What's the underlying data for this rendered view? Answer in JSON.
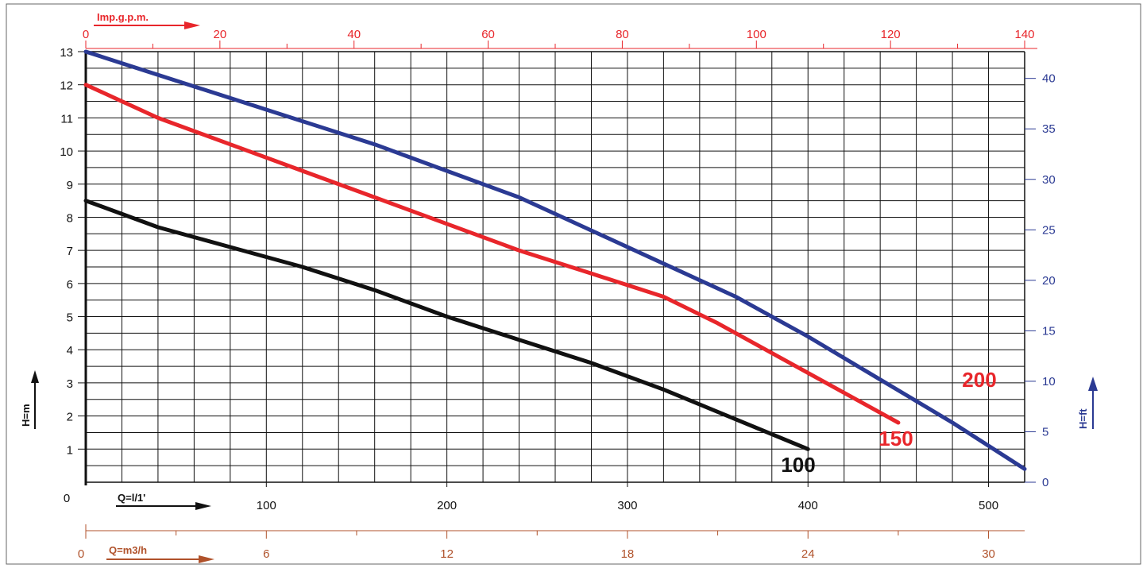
{
  "chart_data": {
    "type": "line",
    "title": "",
    "colors": {
      "left_axis": "#111111",
      "top_axis": "#e8262b",
      "right_axis": "#2b3a93",
      "bottom2_axis": "#b0522b",
      "grid": "#111111"
    },
    "axes": {
      "x_main": {
        "label": "Q=l/1'",
        "unit": "l/min",
        "range": [
          0,
          520
        ],
        "ticks": [
          0,
          100,
          200,
          300,
          400,
          500
        ]
      },
      "x_top": {
        "label": "Imp.g.p.m.",
        "range": [
          0,
          140
        ],
        "ticks": [
          0,
          20,
          40,
          60,
          80,
          100,
          120,
          140
        ]
      },
      "x_bottom2": {
        "label": "Q=m3/h",
        "range": [
          0,
          31.2
        ],
        "ticks": [
          0,
          6,
          12,
          18,
          24,
          30
        ]
      },
      "y_left": {
        "label": "H=m",
        "range": [
          0,
          13
        ],
        "ticks": [
          0,
          1,
          2,
          3,
          4,
          5,
          6,
          7,
          8,
          9,
          10,
          11,
          12,
          13
        ]
      },
      "y_right": {
        "label": "H=ft",
        "range": [
          0,
          42.65
        ],
        "ticks": [
          0,
          5,
          10,
          15,
          20,
          25,
          30,
          35,
          40
        ]
      }
    },
    "grid": true,
    "series": [
      {
        "name": "100",
        "color": "#111111",
        "x": [
          0,
          40,
          80,
          120,
          160,
          200,
          240,
          280,
          320,
          360,
          400
        ],
        "y": [
          8.5,
          7.7,
          7.1,
          6.5,
          5.8,
          5.0,
          4.3,
          3.6,
          2.8,
          1.9,
          1.0
        ]
      },
      {
        "name": "150",
        "color": "#e8262b",
        "x": [
          0,
          40,
          80,
          120,
          160,
          200,
          240,
          280,
          320,
          350,
          380,
          420,
          450
        ],
        "y": [
          12.0,
          11.0,
          10.2,
          9.4,
          8.6,
          7.8,
          7.0,
          6.3,
          5.6,
          4.8,
          3.9,
          2.7,
          1.8
        ]
      },
      {
        "name": "200",
        "color": "#2b3a93",
        "x": [
          0,
          40,
          80,
          120,
          160,
          200,
          240,
          280,
          320,
          360,
          400,
          440,
          480,
          520
        ],
        "y": [
          13.0,
          12.3,
          11.6,
          10.9,
          10.2,
          9.4,
          8.6,
          7.6,
          6.6,
          5.6,
          4.4,
          3.1,
          1.8,
          0.4
        ]
      }
    ]
  }
}
